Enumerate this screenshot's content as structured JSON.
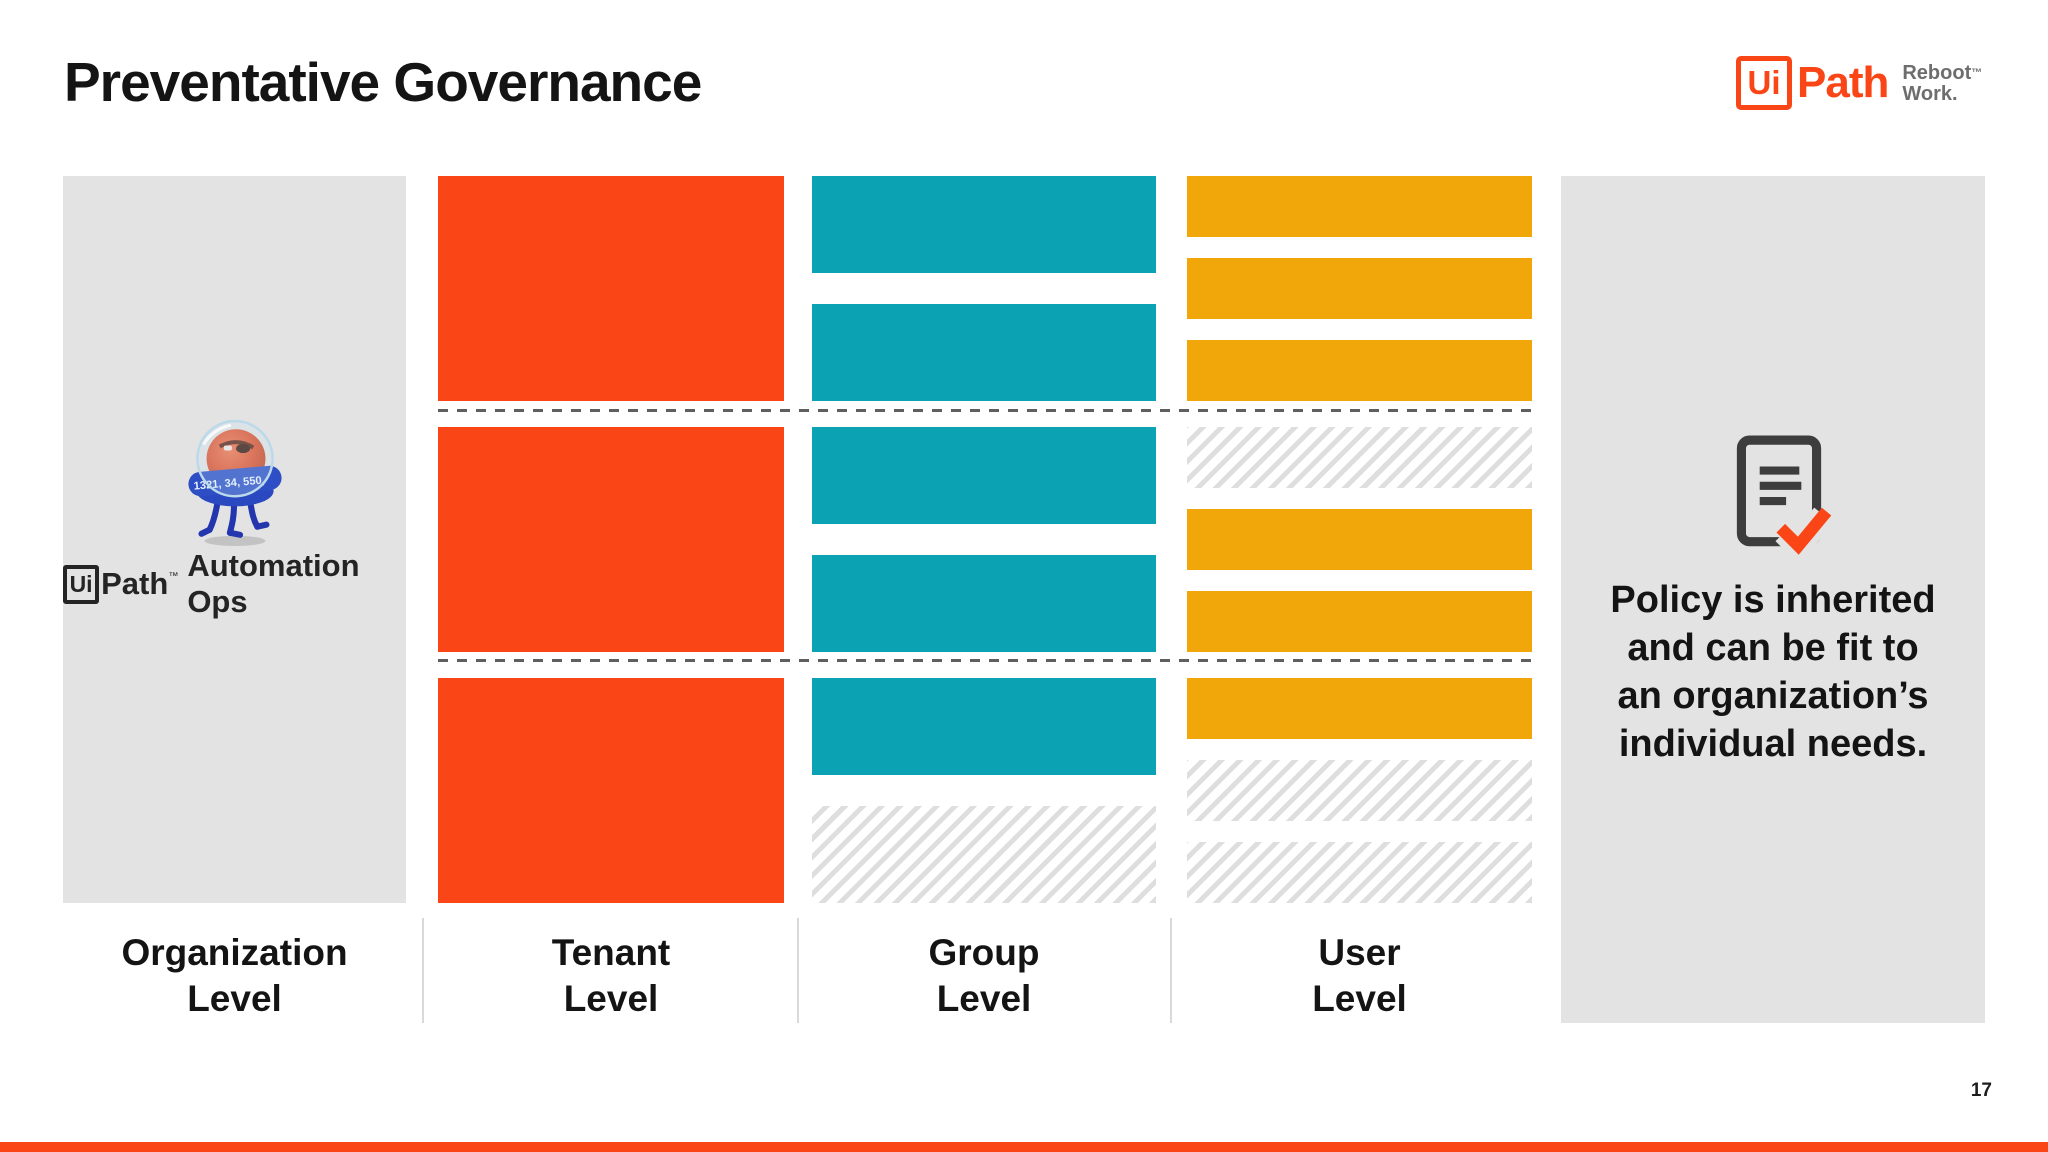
{
  "theme": {
    "orange": "#FA4616",
    "teal": "#0BA3B3",
    "amber": "#F1A60A",
    "panel_gray": "#E3E3E3",
    "hatch_gray": "#DEDEDE",
    "dash_gray": "#5F5F5F"
  },
  "slide": {
    "title": "Preventative Governance",
    "page_number": "17"
  },
  "brand": {
    "ui": "Ui",
    "path": "Path",
    "trademark": "™",
    "tagline_line1": "Reboot",
    "tagline_line2": "Work."
  },
  "organization": {
    "label": "Organization\nLevel",
    "product_ui": "Ui",
    "product_path": "Path",
    "product_trademark": "™",
    "product_suffix": "Automation Ops",
    "mascot_band_numbers": "1321, 34, 550,"
  },
  "levels": [
    {
      "key": "tenant",
      "label": "Tenant\nLevel",
      "color": "#FA4616",
      "block_height": "fill",
      "rows": [
        [
          "solid"
        ],
        [
          "solid"
        ],
        [
          "solid"
        ]
      ]
    },
    {
      "key": "group",
      "label": "Group\nLevel",
      "color": "#0BA3B3",
      "block_height": 97,
      "rows": [
        [
          "solid",
          "solid"
        ],
        [
          "solid",
          "solid"
        ],
        [
          "solid",
          "hatched"
        ]
      ]
    },
    {
      "key": "user",
      "label": "User\nLevel",
      "color": "#F1A60A",
      "block_height": 61,
      "rows": [
        [
          "solid",
          "solid",
          "solid"
        ],
        [
          "hatched",
          "solid",
          "solid"
        ],
        [
          "solid",
          "hatched",
          "hatched"
        ]
      ]
    }
  ],
  "callout": {
    "text": "Policy is inherited\nand can be fit to\nan organization’s\nindividual needs."
  }
}
